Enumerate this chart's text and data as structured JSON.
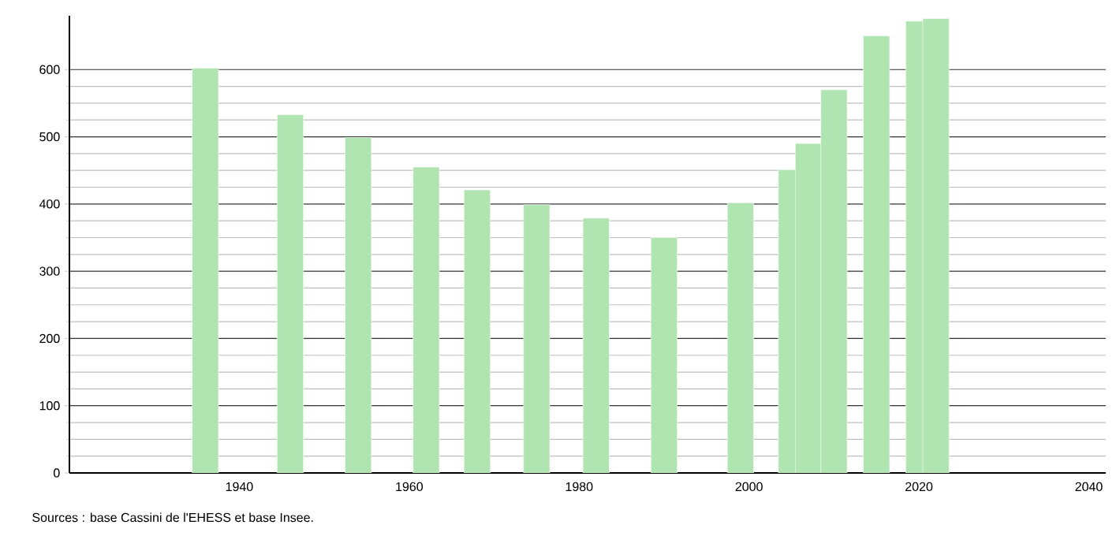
{
  "chart_data": {
    "type": "bar",
    "color": "#b0e4b0",
    "x": [
      1936,
      1946,
      1954,
      1962,
      1968,
      1975,
      1982,
      1990,
      1999,
      2005,
      2007,
      2010,
      2015,
      2020,
      2022
    ],
    "values": [
      602,
      533,
      499,
      455,
      421,
      399,
      379,
      350,
      402,
      451,
      490,
      570,
      650,
      672,
      676
    ],
    "xlim": [
      1920,
      2042
    ],
    "ylim": [
      0,
      680
    ],
    "xticks": [
      1940,
      1960,
      1980,
      2000,
      2020,
      2040
    ],
    "yticks": [
      0,
      100,
      200,
      300,
      400,
      500,
      600
    ],
    "grid": "y",
    "annotations": [
      "Sources : base Cassini de l'EHESS et base Insee."
    ]
  }
}
